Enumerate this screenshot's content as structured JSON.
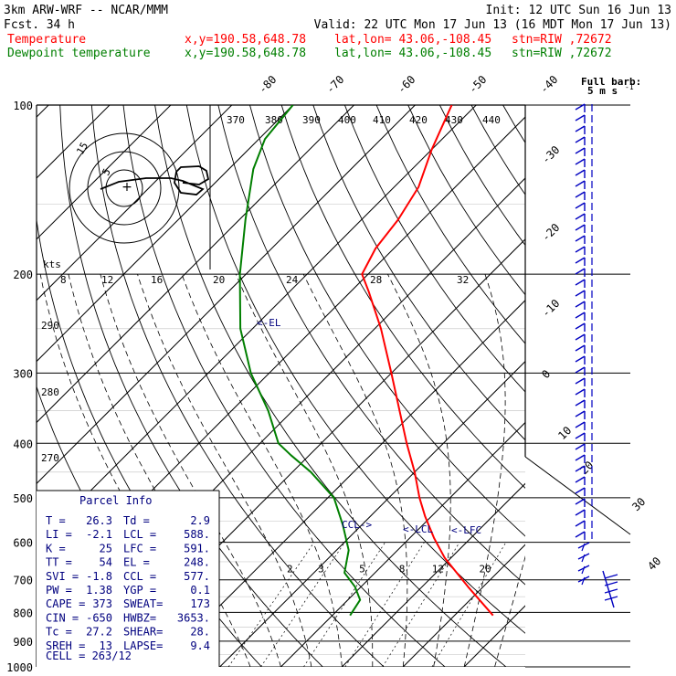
{
  "header": {
    "model": "3km ARW-WRF -- NCAR/MMM",
    "init": "Init: 12 UTC Sun 16 Jun 13",
    "fcst_label": "Fcst.",
    "fcst_value": "34 h",
    "valid": "Valid: 22 UTC Mon 17 Jun 13 (16 MDT Mon 17 Jun 13)",
    "temp_label": "Temperature",
    "dew_label": "Dewpoint temperature",
    "xy": "x,y=190.58,648.78",
    "latlon": "lat,lon= 43.06,-108.45",
    "stn": "stn=RIW ,72672"
  },
  "colors": {
    "temperature": "#ff0000",
    "dewpoint": "#007f00",
    "parcel": "#00007f",
    "axes": "#000000"
  },
  "axes": {
    "pressure_ticks": [
      "100",
      "200",
      "300",
      "400",
      "500",
      "600",
      "700",
      "800",
      "900",
      "1000"
    ],
    "isotherm_labels_top": [
      "-80",
      "-70",
      "-60",
      "-50",
      "-40"
    ],
    "isotherm_labels_right": [
      "-30",
      "-20",
      "-10",
      "0",
      "10",
      "20",
      "30",
      "40"
    ],
    "theta_labels_top": [
      "370",
      "380",
      "390",
      "400",
      "410",
      "420",
      "430",
      "440"
    ],
    "theta_labels_left": [
      "290",
      "280",
      "270"
    ],
    "mixing_ratio_labels": [
      "2",
      "3",
      "5",
      "8",
      "12",
      "20"
    ],
    "hodo_speed_labels": [
      "8",
      "12",
      "16",
      "20",
      "24",
      "28",
      "32"
    ],
    "hodo_unit": "kts",
    "hodo_ring_labels": [
      "15",
      "5"
    ],
    "full_barb_label": "Full barb:",
    "full_barb_value": "5 m s",
    "full_barb_exp": "-1",
    "el_marker": "<-EL",
    "ccl_marker": "CCL->",
    "lcl_marker": "<-LCL",
    "lfc_marker": "<-LFC"
  },
  "parcel_info": {
    "title": "Parcel Info",
    "rows": [
      [
        "T     =",
        "26.3",
        "Td =",
        "2.9"
      ],
      [
        "LI    =",
        "-2.1",
        "LCL =",
        "588."
      ],
      [
        "K     =",
        "25",
        "LFC =",
        "591."
      ],
      [
        "TT    =",
        "54",
        "EL =",
        "248."
      ],
      [
        "SVI   =",
        "-1.8",
        "CCL =",
        "577."
      ],
      [
        "PW    =",
        "1.38",
        "YGP =",
        "0.1"
      ],
      [
        "CAPE =",
        "373",
        "SWEAT=",
        "173"
      ],
      [
        "CIN   =",
        "-650",
        "HWBZ=",
        "3653."
      ],
      [
        "Tc    =",
        "27.2",
        "SHEAR=",
        "28."
      ],
      [
        "SREH =",
        "13",
        "LAPSE=",
        "9.4"
      ]
    ],
    "cell": "CELL = 263/12"
  },
  "chart_data": {
    "type": "line",
    "diagram": "skew-T log-P sounding",
    "y_axis": "pressure (hPa), logarithmic",
    "ylim": [
      1000,
      100
    ],
    "xlim_temperature_at_1000hPa": [
      -40,
      40
    ],
    "isotherm_skew": "45 degrees",
    "series": [
      {
        "name": "Temperature",
        "points": [
          {
            "p": 810,
            "t": 26.3
          },
          {
            "p": 720,
            "t": 17.5
          },
          {
            "p": 640,
            "t": 9
          },
          {
            "p": 590,
            "t": 4
          },
          {
            "p": 540,
            "t": -1
          },
          {
            "p": 500,
            "t": -5
          },
          {
            "p": 450,
            "t": -10
          },
          {
            "p": 400,
            "t": -16
          },
          {
            "p": 350,
            "t": -22.5
          },
          {
            "p": 300,
            "t": -30
          },
          {
            "p": 250,
            "t": -39
          },
          {
            "p": 215,
            "t": -47
          },
          {
            "p": 200,
            "t": -51
          },
          {
            "p": 180,
            "t": -53
          },
          {
            "p": 160,
            "t": -54
          },
          {
            "p": 140,
            "t": -56
          },
          {
            "p": 120,
            "t": -60
          },
          {
            "p": 100,
            "t": -64
          }
        ]
      },
      {
        "name": "Dewpoint temperature",
        "points": [
          {
            "p": 810,
            "t": 2.9
          },
          {
            "p": 760,
            "t": 2
          },
          {
            "p": 720,
            "t": -1
          },
          {
            "p": 680,
            "t": -5
          },
          {
            "p": 620,
            "t": -8
          },
          {
            "p": 560,
            "t": -13
          },
          {
            "p": 500,
            "t": -19
          },
          {
            "p": 450,
            "t": -27
          },
          {
            "p": 420,
            "t": -33
          },
          {
            "p": 400,
            "t": -37
          },
          {
            "p": 350,
            "t": -44
          },
          {
            "p": 300,
            "t": -53
          },
          {
            "p": 250,
            "t": -62
          },
          {
            "p": 200,
            "t": -71
          },
          {
            "p": 160,
            "t": -79
          },
          {
            "p": 130,
            "t": -86
          },
          {
            "p": 115,
            "t": -89
          },
          {
            "p": 100,
            "t": -90
          }
        ]
      }
    ],
    "levels_hPa": {
      "LCL": 588,
      "LFC": 591,
      "EL": 248,
      "CCL": 577
    }
  }
}
